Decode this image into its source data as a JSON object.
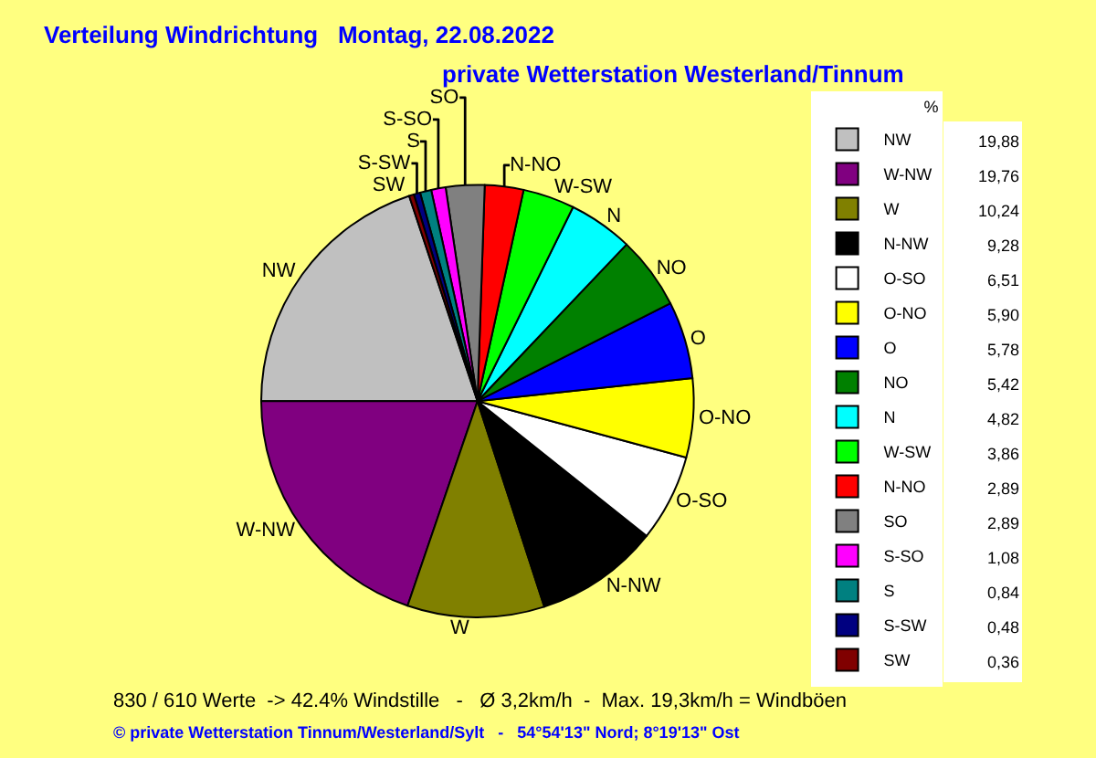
{
  "chart_data": {
    "type": "pie",
    "title": "Verteilung Windrichtung   Montag, 22.08.2022",
    "subtitle": "private Wetterstation Westerland/Tinnum",
    "legend_title": "%",
    "legend": "right",
    "categories": [
      "NW",
      "W-NW",
      "W",
      "N-NW",
      "O-SO",
      "O-NO",
      "O",
      "NO",
      "N",
      "W-SW",
      "N-NO",
      "SO",
      "S-SO",
      "S",
      "S-SW",
      "SW"
    ],
    "values": [
      19.88,
      19.76,
      10.24,
      9.28,
      6.51,
      5.9,
      5.78,
      5.42,
      4.82,
      3.86,
      2.89,
      2.89,
      1.08,
      0.84,
      0.48,
      0.36
    ],
    "value_labels": [
      "19,88",
      "19,76",
      "10,24",
      "9,28",
      "6,51",
      "5,90",
      "5,78",
      "5,42",
      "4,82",
      "3,86",
      "2,89",
      "2,89",
      "1,08",
      "0,84",
      "0,48",
      "0,36"
    ],
    "colors": [
      "#c0c0c0",
      "#800080",
      "#808000",
      "#000000",
      "#ffffff",
      "#ffff00",
      "#0000ff",
      "#008000",
      "#00ffff",
      "#00ff00",
      "#ff0000",
      "#808080",
      "#ff00ff",
      "#008080",
      "#000080",
      "#800000"
    ],
    "annotations": [
      "830 / 610 Werte  -> 42.4% Windstille   -   Ø 3,2km/h  -  Max. 19,3km/h = Windböen",
      "© private Wetterstation Tinnum/Westerland/Sylt   -   54°54'13\" Nord; 8°19'13\" Ost"
    ]
  }
}
